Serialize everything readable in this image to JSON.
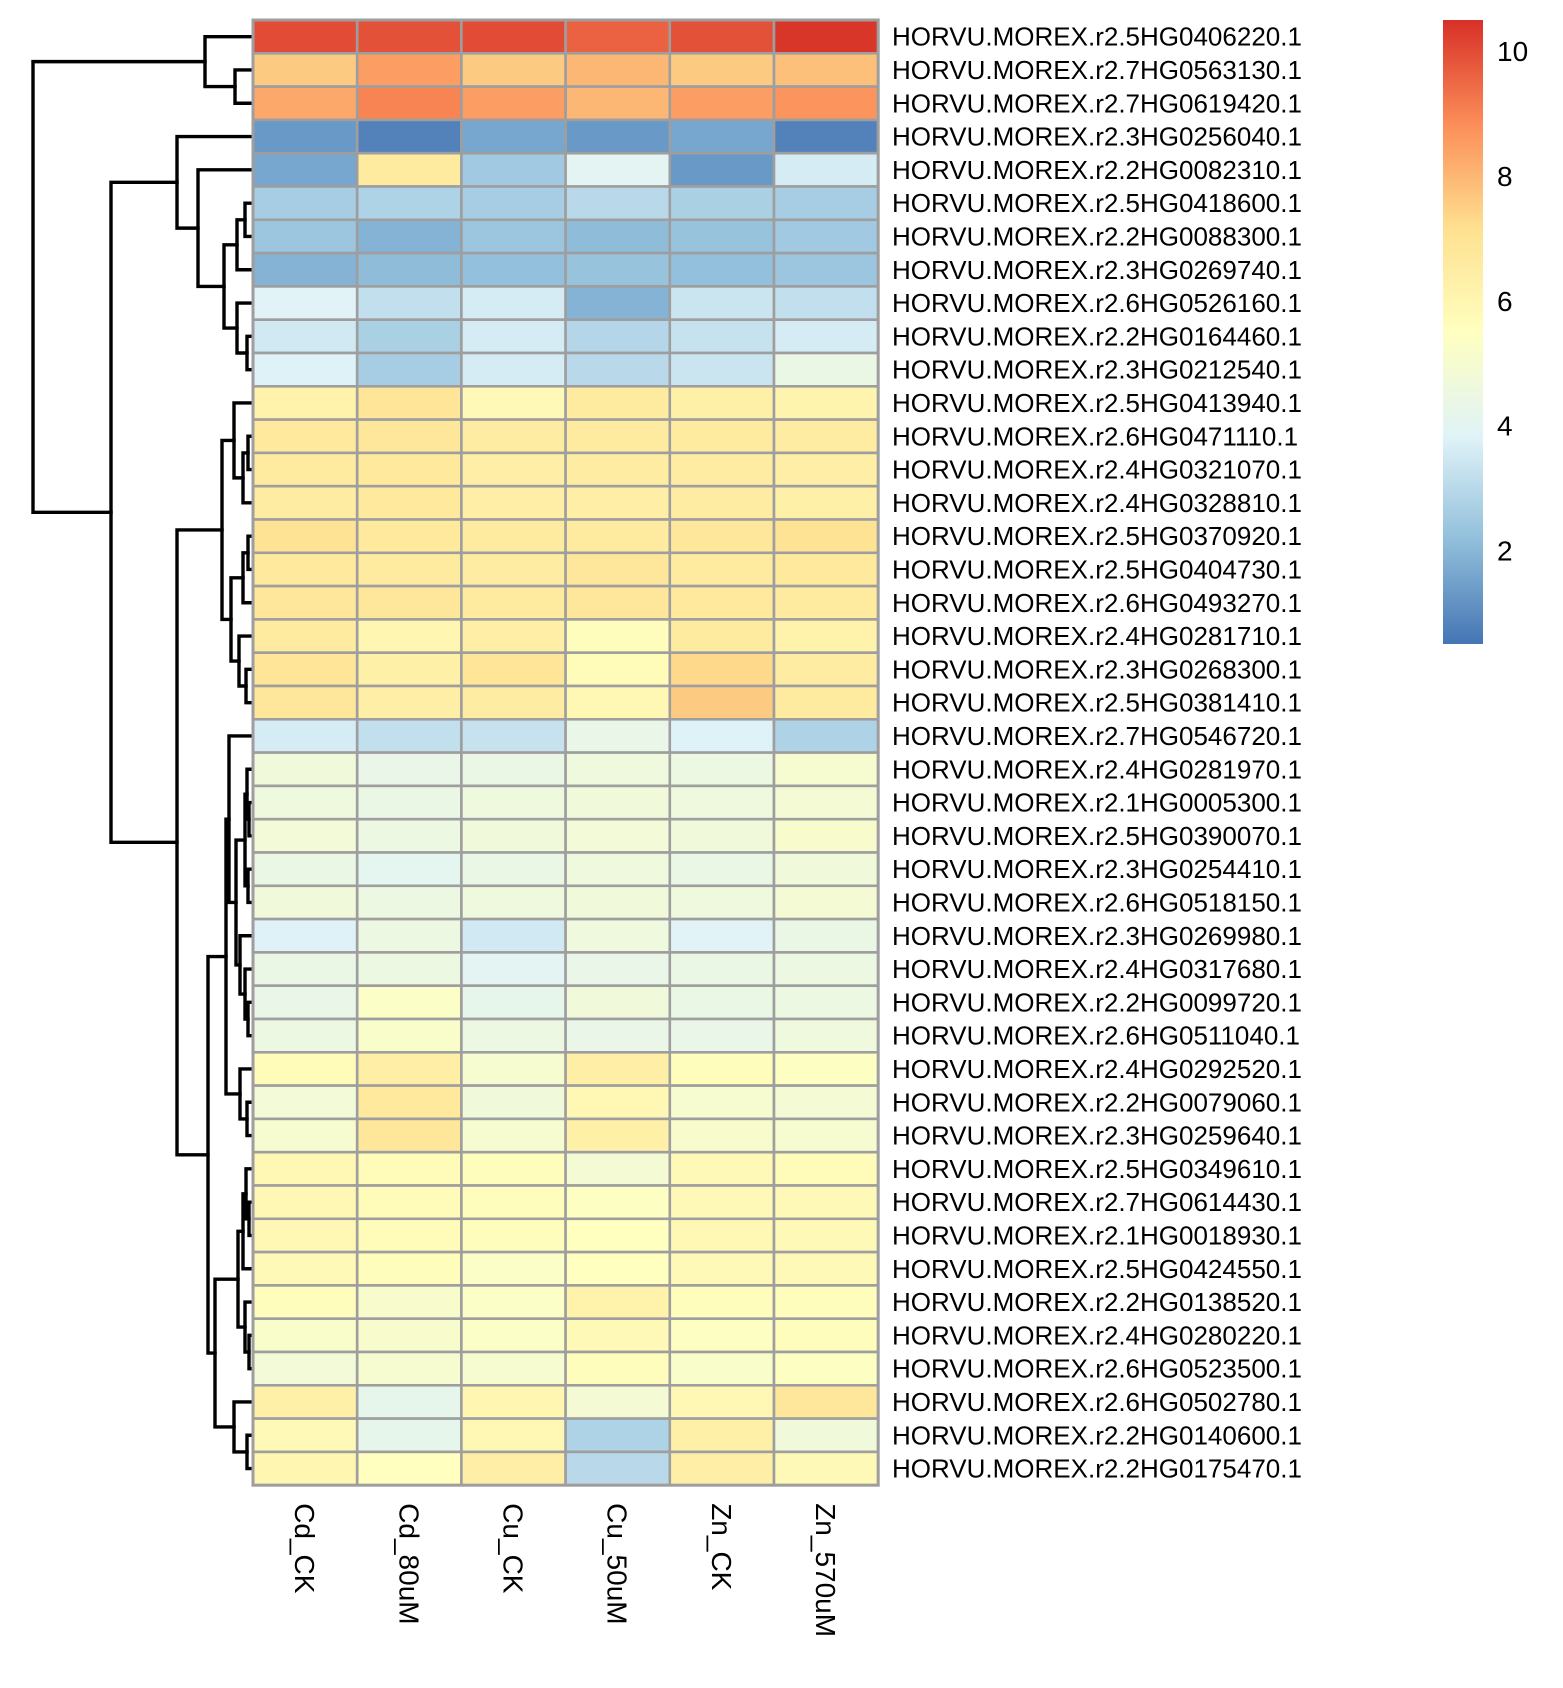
{
  "chart_data": {
    "type": "heatmap",
    "columns": [
      "Cd_CK",
      "Cd_80uM",
      "Cu_CK",
      "Cu_50uM",
      "Zn_CK",
      "Zn_570uM"
    ],
    "rows": [
      {
        "gene": "HORVU.MOREX.r2.5HG0406220.1",
        "values": [
          10.0,
          9.9,
          10.0,
          9.6,
          9.9,
          10.4
        ]
      },
      {
        "gene": "HORVU.MOREX.r2.7HG0563130.1",
        "values": [
          7.6,
          8.5,
          7.6,
          8.0,
          7.6,
          7.8
        ]
      },
      {
        "gene": "HORVU.MOREX.r2.7HG0619420.1",
        "values": [
          8.3,
          9.0,
          8.5,
          8.0,
          8.5,
          8.7
        ]
      },
      {
        "gene": "HORVU.MOREX.r2.3HG0256040.1",
        "values": [
          1.3,
          0.8,
          1.6,
          1.3,
          1.6,
          0.8
        ]
      },
      {
        "gene": "HORVU.MOREX.r2.2HG0082310.1",
        "values": [
          1.6,
          6.6,
          2.5,
          4.0,
          1.3,
          3.6
        ]
      },
      {
        "gene": "HORVU.MOREX.r2.5HG0418600.1",
        "values": [
          2.6,
          2.8,
          2.6,
          3.0,
          2.7,
          2.6
        ]
      },
      {
        "gene": "HORVU.MOREX.r2.2HG0088300.1",
        "values": [
          2.4,
          1.9,
          2.4,
          2.1,
          2.3,
          2.5
        ]
      },
      {
        "gene": "HORVU.MOREX.r2.3HG0269740.1",
        "values": [
          1.9,
          2.1,
          2.2,
          2.3,
          2.2,
          2.4
        ]
      },
      {
        "gene": "HORVU.MOREX.r2.6HG0526160.1",
        "values": [
          3.9,
          3.2,
          3.6,
          1.9,
          3.4,
          3.2
        ]
      },
      {
        "gene": "HORVU.MOREX.r2.2HG0164460.1",
        "values": [
          3.5,
          2.7,
          3.6,
          2.9,
          3.3,
          3.6
        ]
      },
      {
        "gene": "HORVU.MOREX.r2.3HG0212540.1",
        "values": [
          3.8,
          2.6,
          3.6,
          3.0,
          3.4,
          4.4
        ]
      },
      {
        "gene": "HORVU.MOREX.r2.5HG0413940.1",
        "values": [
          6.2,
          6.9,
          5.8,
          6.6,
          6.3,
          6.1
        ]
      },
      {
        "gene": "HORVU.MOREX.r2.6HG0471110.1",
        "values": [
          6.7,
          6.8,
          6.5,
          6.6,
          6.6,
          6.5
        ]
      },
      {
        "gene": "HORVU.MOREX.r2.4HG0321070.1",
        "values": [
          6.6,
          6.7,
          6.4,
          6.5,
          6.5,
          6.4
        ]
      },
      {
        "gene": "HORVU.MOREX.r2.4HG0328810.1",
        "values": [
          6.5,
          6.7,
          6.4,
          6.4,
          6.5,
          6.3
        ]
      },
      {
        "gene": "HORVU.MOREX.r2.5HG0370920.1",
        "values": [
          7.0,
          6.7,
          6.6,
          6.6,
          6.8,
          7.0
        ]
      },
      {
        "gene": "HORVU.MOREX.r2.5HG0404730.1",
        "values": [
          6.7,
          6.6,
          6.5,
          6.8,
          6.6,
          6.7
        ]
      },
      {
        "gene": "HORVU.MOREX.r2.6HG0493270.1",
        "values": [
          6.8,
          6.8,
          6.6,
          6.8,
          6.7,
          6.6
        ]
      },
      {
        "gene": "HORVU.MOREX.r2.4HG0281710.1",
        "values": [
          6.6,
          6.0,
          6.4,
          5.6,
          6.6,
          6.2
        ]
      },
      {
        "gene": "HORVU.MOREX.r2.3HG0268300.1",
        "values": [
          6.9,
          6.3,
          6.9,
          5.7,
          7.3,
          6.5
        ]
      },
      {
        "gene": "HORVU.MOREX.r2.5HG0381410.1",
        "values": [
          6.8,
          6.4,
          6.5,
          5.9,
          7.6,
          6.6
        ]
      },
      {
        "gene": "HORVU.MOREX.r2.7HG0546720.1",
        "values": [
          3.6,
          3.2,
          3.3,
          4.3,
          3.8,
          2.8
        ]
      },
      {
        "gene": "HORVU.MOREX.r2.4HG0281970.1",
        "values": [
          4.7,
          4.3,
          4.4,
          4.6,
          4.5,
          5.0
        ]
      },
      {
        "gene": "HORVU.MOREX.r2.1HG0005300.1",
        "values": [
          4.6,
          4.4,
          4.6,
          4.7,
          4.6,
          4.9
        ]
      },
      {
        "gene": "HORVU.MOREX.r2.5HG0390070.1",
        "values": [
          4.8,
          4.5,
          4.7,
          4.8,
          4.7,
          5.1
        ]
      },
      {
        "gene": "HORVU.MOREX.r2.3HG0254410.1",
        "values": [
          4.4,
          4.1,
          4.4,
          4.6,
          4.4,
          4.7
        ]
      },
      {
        "gene": "HORVU.MOREX.r2.6HG0518150.1",
        "values": [
          4.7,
          4.5,
          4.6,
          4.7,
          4.6,
          4.9
        ]
      },
      {
        "gene": "HORVU.MOREX.r2.3HG0269980.1",
        "values": [
          3.8,
          4.5,
          3.5,
          4.6,
          3.9,
          4.4
        ]
      },
      {
        "gene": "HORVU.MOREX.r2.4HG0317680.1",
        "values": [
          4.4,
          4.5,
          4.0,
          4.3,
          4.4,
          4.5
        ]
      },
      {
        "gene": "HORVU.MOREX.r2.2HG0099720.1",
        "values": [
          4.3,
          5.3,
          4.2,
          4.7,
          4.4,
          4.5
        ]
      },
      {
        "gene": "HORVU.MOREX.r2.6HG0511040.1",
        "values": [
          4.5,
          5.2,
          4.5,
          4.3,
          4.3,
          4.6
        ]
      },
      {
        "gene": "HORVU.MOREX.r2.4HG0292520.1",
        "values": [
          5.7,
          6.4,
          5.0,
          6.4,
          5.6,
          5.4
        ]
      },
      {
        "gene": "HORVU.MOREX.r2.2HG0079060.1",
        "values": [
          4.8,
          6.7,
          4.7,
          5.9,
          5.0,
          4.9
        ]
      },
      {
        "gene": "HORVU.MOREX.r2.3HG0259640.1",
        "values": [
          5.0,
          6.8,
          5.0,
          6.3,
          5.1,
          5.0
        ]
      },
      {
        "gene": "HORVU.MOREX.r2.5HG0349610.1",
        "values": [
          5.9,
          5.7,
          5.6,
          4.9,
          5.8,
          5.7
        ]
      },
      {
        "gene": "HORVU.MOREX.r2.7HG0614430.1",
        "values": [
          5.9,
          5.7,
          5.6,
          5.4,
          5.8,
          5.8
        ]
      },
      {
        "gene": "HORVU.MOREX.r2.1HG0018930.1",
        "values": [
          5.9,
          5.7,
          5.6,
          5.5,
          5.9,
          5.8
        ]
      },
      {
        "gene": "HORVU.MOREX.r2.5HG0424550.1",
        "values": [
          5.8,
          5.6,
          5.3,
          5.5,
          5.8,
          5.8
        ]
      },
      {
        "gene": "HORVU.MOREX.r2.2HG0138520.1",
        "values": [
          5.6,
          5.1,
          5.3,
          6.2,
          5.6,
          5.6
        ]
      },
      {
        "gene": "HORVU.MOREX.r2.4HG0280220.1",
        "values": [
          5.2,
          5.1,
          5.3,
          5.8,
          5.4,
          5.6
        ]
      },
      {
        "gene": "HORVU.MOREX.r2.6HG0523500.1",
        "values": [
          4.8,
          5.0,
          5.0,
          5.6,
          5.2,
          5.4
        ]
      },
      {
        "gene": "HORVU.MOREX.r2.6HG0502780.1",
        "values": [
          6.3,
          4.2,
          6.0,
          4.9,
          5.9,
          6.8
        ]
      },
      {
        "gene": "HORVU.MOREX.r2.2HG0140600.1",
        "values": [
          5.8,
          4.2,
          5.9,
          2.8,
          6.3,
          4.7
        ]
      },
      {
        "gene": "HORVU.MOREX.r2.2HG0175470.1",
        "values": [
          6.0,
          5.5,
          6.4,
          3.0,
          6.4,
          5.8
        ]
      }
    ],
    "color_scale": {
      "min": 0.5,
      "max": 10.5,
      "ticks": [
        2,
        4,
        6,
        8,
        10
      ],
      "colors": [
        "#4575b4",
        "#91bfdb",
        "#e0f3f8",
        "#ffffbf",
        "#fee090",
        "#fc8d59",
        "#d73027"
      ]
    },
    "row_dendrogram": true,
    "title": "",
    "xlabel": "",
    "ylabel": ""
  }
}
